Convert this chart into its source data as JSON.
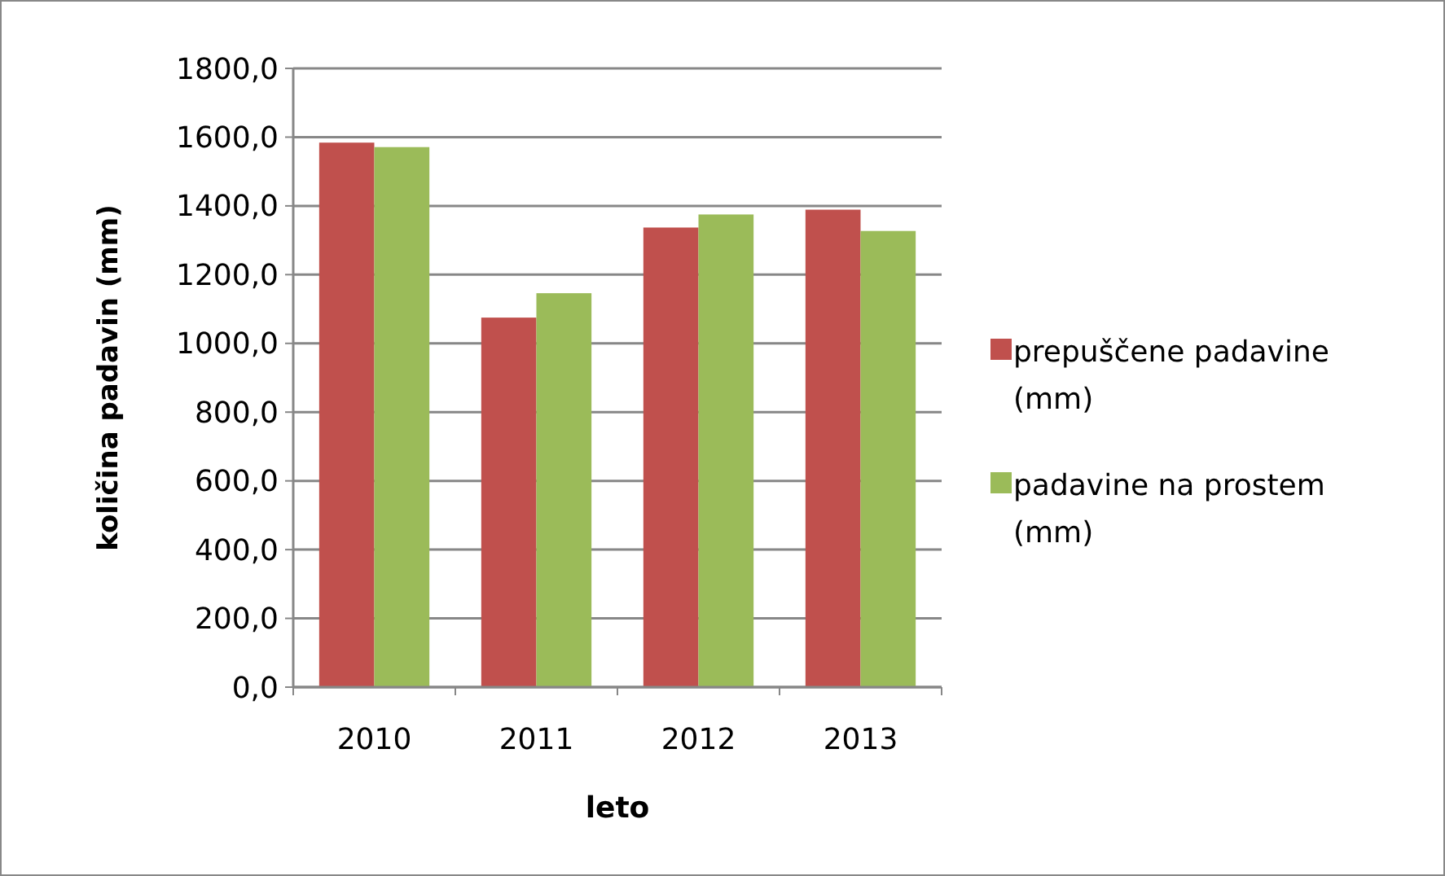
{
  "chart_data": {
    "type": "bar",
    "xlabel": "leto",
    "ylabel": "količina padavin (mm)",
    "categories": [
      "2010",
      "2011",
      "2012",
      "2013"
    ],
    "series": [
      {
        "name": "prepuščene padavine (mm)",
        "color": "#c0504d",
        "values": [
          1584,
          1075,
          1337,
          1389
        ]
      },
      {
        "name": "padavine na prostem (mm)",
        "color": "#9bbb59",
        "values": [
          1571,
          1146,
          1375,
          1327
        ]
      }
    ],
    "ylim": [
      0,
      1800
    ],
    "yticks": [
      {
        "value": 0,
        "label": "0,0"
      },
      {
        "value": 200,
        "label": "200,0"
      },
      {
        "value": 400,
        "label": "400,0"
      },
      {
        "value": 600,
        "label": "600,0"
      },
      {
        "value": 800,
        "label": "800,0"
      },
      {
        "value": 1000,
        "label": "1000,0"
      },
      {
        "value": 1200,
        "label": "1200,0"
      },
      {
        "value": 1400,
        "label": "1400,0"
      },
      {
        "value": 1600,
        "label": "1600,0"
      },
      {
        "value": 1800,
        "label": "1800,0"
      }
    ],
    "grid": "y",
    "legend": "right"
  }
}
